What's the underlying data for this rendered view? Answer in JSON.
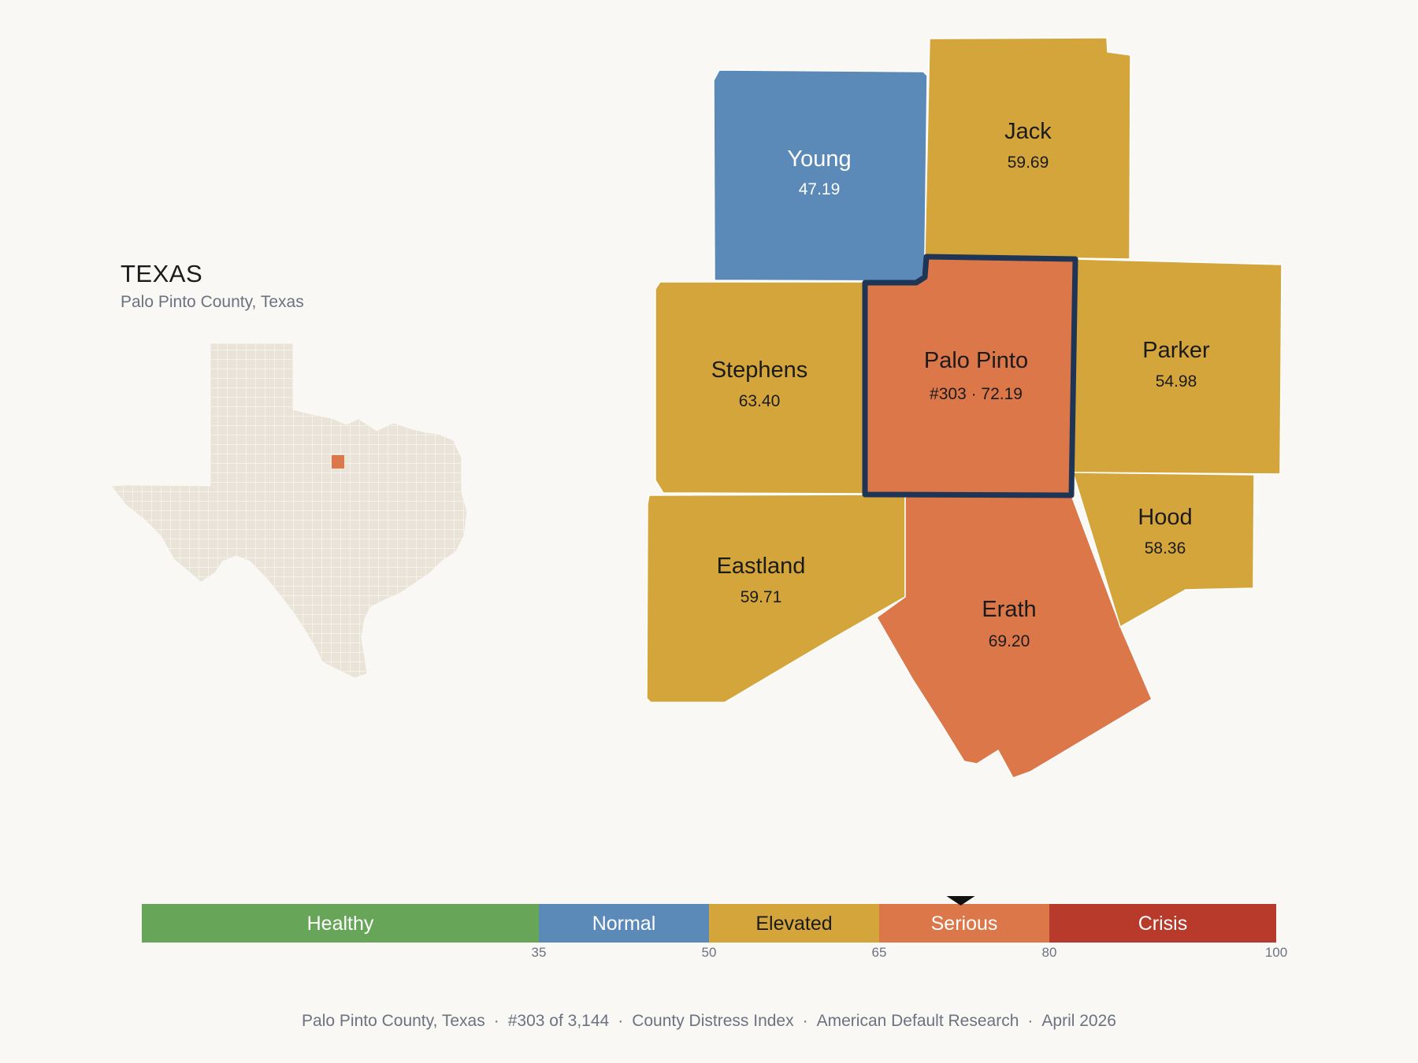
{
  "inset": {
    "title": "TEXAS",
    "subtitle": "Palo Pinto County, Texas"
  },
  "colors": {
    "healthy": "#67a659",
    "normal": "#5b89b8",
    "elevated": "#d4a53b",
    "serious": "#dc774a",
    "crisis": "#b83a2b",
    "highlight_border": "#1e3556",
    "state_fill": "#e9e3d8"
  },
  "counties": [
    {
      "name": "Young",
      "value": "47.19",
      "category": "normal"
    },
    {
      "name": "Jack",
      "value": "59.69",
      "category": "elevated"
    },
    {
      "name": "Stephens",
      "value": "63.40",
      "category": "elevated"
    },
    {
      "name": "Palo Pinto",
      "value": "#303 · 72.19",
      "category": "serious",
      "selected": true
    },
    {
      "name": "Parker",
      "value": "54.98",
      "category": "elevated"
    },
    {
      "name": "Eastland",
      "value": "59.71",
      "category": "elevated"
    },
    {
      "name": "Erath",
      "value": "69.20",
      "category": "serious"
    },
    {
      "name": "Hood",
      "value": "58.36",
      "category": "elevated"
    }
  ],
  "scale": {
    "min": 0,
    "max": 100,
    "marker_value": 72.19,
    "segments": [
      {
        "label": "Healthy",
        "from": 0,
        "to": 35,
        "color": "#67a659"
      },
      {
        "label": "Normal",
        "from": 35,
        "to": 50,
        "color": "#5b89b8"
      },
      {
        "label": "Elevated",
        "from": 50,
        "to": 65,
        "color": "#d4a53b"
      },
      {
        "label": "Serious",
        "from": 65,
        "to": 80,
        "color": "#dc774a"
      },
      {
        "label": "Crisis",
        "from": 80,
        "to": 100,
        "color": "#b83a2b"
      }
    ],
    "ticks": [
      "35",
      "50",
      "65",
      "80",
      "100"
    ]
  },
  "footer": {
    "county": "Palo Pinto County, Texas",
    "rank": "#303 of 3,144",
    "index": "County Distress Index",
    "source": "American Default Research",
    "date": "April 2026"
  }
}
